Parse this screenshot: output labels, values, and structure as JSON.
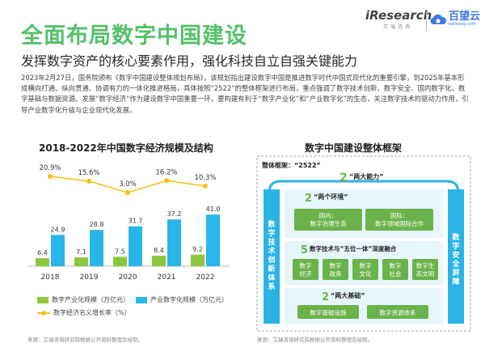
{
  "header": {
    "title": "全面布局数字中国建设",
    "subtitle": "发挥数字资产的核心要素作用，强化科技自立自强关键能力"
  },
  "logos": {
    "iresearch": "iResearch",
    "iresearch_sub": "艾瑞咨询",
    "baiwang": "百望云",
    "baiwang_sub": "baiwang.com"
  },
  "body_text": "2023年2月27日，国务院颁布《数字中国建设整体规划布局》，该规划指出建设数字中国是推进数字时代中国式现代化的重要引擎，到2025年基本形成横向打通、纵向贯通、协调有力的一体化推进格局，具体按照“2522”的整体框架进行布局，重点强调了数字技术创新、数字安全、国内数字化、数字基础与数据资源。发展“数字经济”作为建设数字中国重要一环，要构建有利于“数字产业化”和“产业数字化”的生态，关注数字技术的驱动力作用，引导产业数字化升级与企业现代化发展。",
  "chart_data": {
    "type": "bar",
    "title": "2018-2022年中国数字经济规模及结构",
    "categories": [
      "2018",
      "2019",
      "2020",
      "2021",
      "2022"
    ],
    "series": [
      {
        "name": "数字产业化规模（万亿元）",
        "values": [
          6.4,
          7.1,
          7.5,
          8.4,
          9.2
        ],
        "color": "#8dc63f"
      },
      {
        "name": "产业数字化规模（万亿元）",
        "values": [
          24.9,
          28.8,
          31.7,
          37.2,
          41.0
        ],
        "color": "#29b6e8"
      }
    ],
    "line_series": {
      "name": "数字经济名义增长率（%）",
      "values": [
        20.9,
        15.6,
        3.0,
        16.2,
        10.3
      ],
      "labels": [
        "20.9%",
        "15.6%",
        "3.0%",
        "16.2%",
        "10.3%"
      ],
      "color": "#f5c012"
    },
    "bar_labels": [
      [
        "6.4",
        "7.1",
        "7.5",
        "8.4",
        "9.2"
      ],
      [
        "24.9",
        "28.8",
        "31.7",
        "37.2",
        "41.0"
      ]
    ],
    "ylim": [
      0,
      45
    ]
  },
  "framework": {
    "title": "数字中国建设整体框架",
    "label": "整体框架：“2522”",
    "left_side": "数字技术创新体系",
    "right_side": "数字安全屏障",
    "top_num": "2",
    "top_label": "“两大能力”",
    "env_num": "2",
    "env_label": "“两个环境”",
    "env_boxes": [
      "国内：\n数字治理生态",
      "国际：\n数字领域国际合作"
    ],
    "five_num": "5",
    "five_label": "数字技术与“五位一体”深度融合",
    "five_boxes": [
      "数字\n经济",
      "数字\n政务",
      "数字\n文化",
      "数字\n社会",
      "数字生\n态文明"
    ],
    "base_num": "2",
    "base_label": "“两大基础”",
    "base_boxes": [
      "数字基础设施",
      "数字资源体系"
    ]
  },
  "source_left": "来源：艾瑞咨询研究院根据公开资料整理及绘制。",
  "source_right": "来源：艾瑞咨询研究院根据公开资料整理及绘制。"
}
